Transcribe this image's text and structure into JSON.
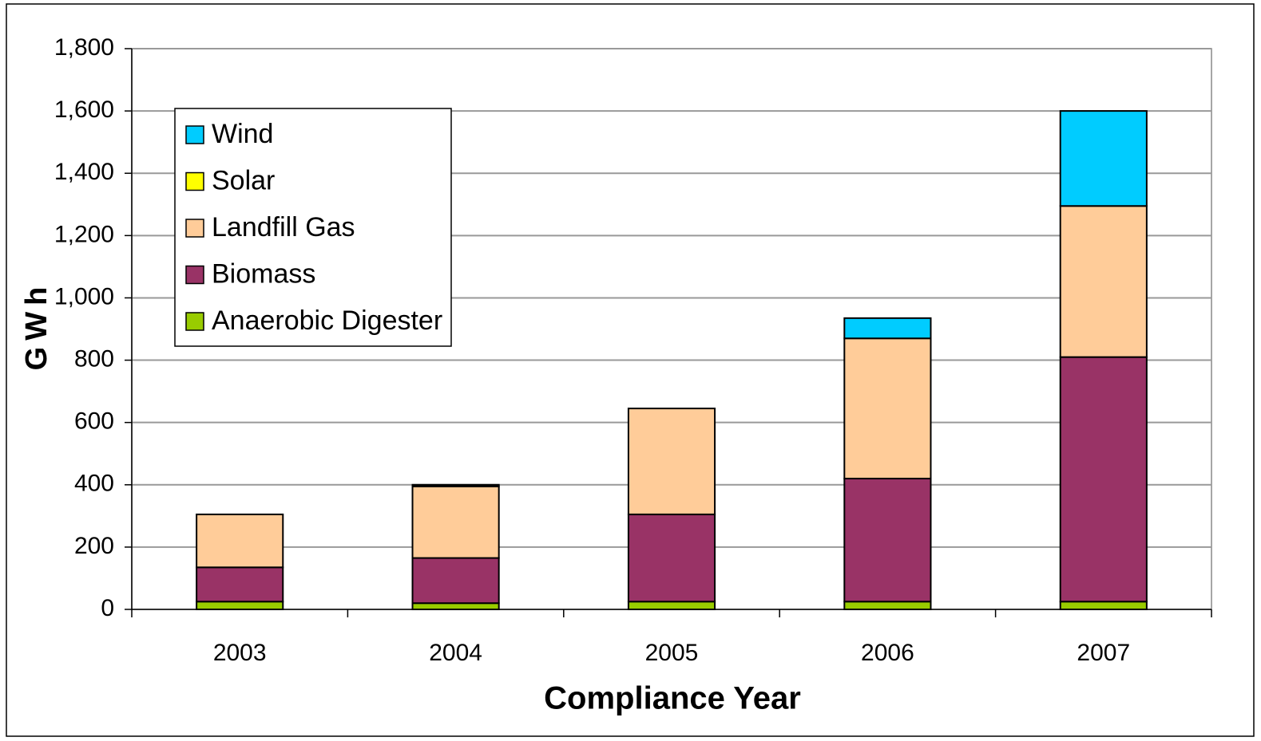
{
  "chart_data": {
    "type": "stacked_bar",
    "xlabel": "Compliance Year",
    "ylabel": "GWh",
    "categories": [
      "2003",
      "2004",
      "2005",
      "2006",
      "2007"
    ],
    "series": [
      {
        "name": "Anaerobic Digester",
        "color": "#99cc00",
        "values": [
          25,
          20,
          25,
          25,
          25
        ]
      },
      {
        "name": "Biomass",
        "color": "#993366",
        "values": [
          110,
          145,
          280,
          395,
          785
        ]
      },
      {
        "name": "Landfill Gas",
        "color": "#ffcc99",
        "values": [
          170,
          230,
          340,
          450,
          485
        ]
      },
      {
        "name": "Solar",
        "color": "#ffff00",
        "values": [
          0,
          5,
          0,
          0,
          0
        ]
      },
      {
        "name": "Wind",
        "color": "#00ccff",
        "values": [
          0,
          0,
          0,
          65,
          305
        ]
      }
    ],
    "ylim": [
      0,
      1800
    ],
    "yticks": [
      0,
      200,
      400,
      600,
      800,
      {
        "value": 1000,
        "label": "1,000"
      },
      {
        "value": 1200,
        "label": "1,200"
      },
      {
        "value": 1400,
        "label": "1,400"
      },
      {
        "value": 1600,
        "label": "1,600"
      },
      {
        "value": 1800,
        "label": "1,800"
      }
    ],
    "grid": true,
    "legend": "upper left"
  }
}
